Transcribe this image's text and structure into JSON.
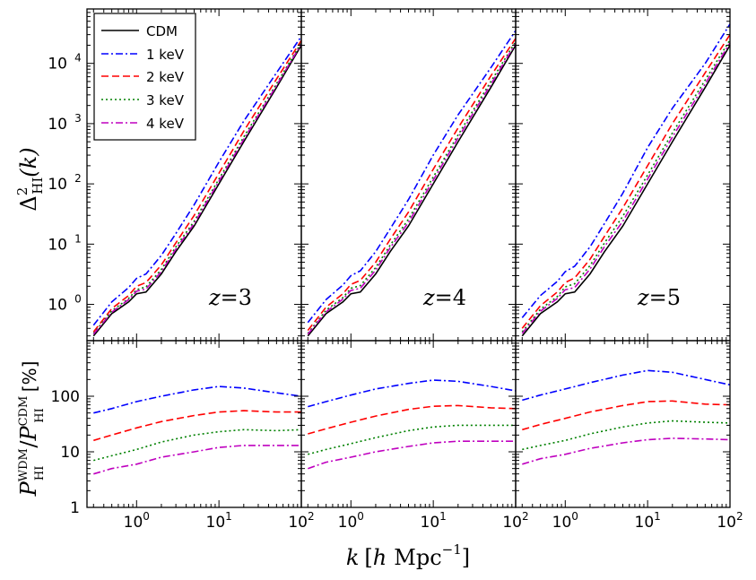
{
  "chart_data": {
    "type": "line",
    "x_axis": {
      "label": "k [h Mpc^-1]",
      "label_parts": {
        "k": "k",
        "h": "h",
        "unit": "Mpc",
        "exp": "−1"
      },
      "scale": "log",
      "xlim": [
        0.25,
        100
      ],
      "ticks": [
        1,
        10,
        100
      ],
      "tick_labels": [
        {
          "base": "10",
          "exp": "0"
        },
        {
          "base": "10",
          "exp": "1"
        },
        {
          "base": "10",
          "exp": "2"
        }
      ]
    },
    "top_y_axis": {
      "label": "Δ²_HI(k)",
      "label_parts": {
        "sym": "Δ",
        "sup": "2",
        "sub": "HI",
        "arg": "(k)"
      },
      "scale": "log",
      "ylim": [
        0.25,
        80000
      ],
      "ticks": [
        1,
        10,
        100,
        1000,
        10000
      ],
      "tick_labels": [
        {
          "base": "10",
          "exp": "0"
        },
        {
          "base": "10",
          "exp": "1"
        },
        {
          "base": "10",
          "exp": "2"
        },
        {
          "base": "10",
          "exp": "3"
        },
        {
          "base": "10",
          "exp": "4"
        }
      ]
    },
    "bottom_y_axis": {
      "label": "P_HI^WDM / P_HI^CDM [%]",
      "label_parts": {
        "P": "P",
        "sub": "HI",
        "sup_wdm": "WDM",
        "sup_cdm": "CDM",
        "slash": "/",
        "unit": "[%]"
      },
      "scale": "log",
      "ylim": [
        1,
        1000
      ],
      "ticks": [
        1,
        10,
        100
      ],
      "tick_labels": [
        "1",
        "10",
        "100"
      ]
    },
    "legend": {
      "position": "top-left of first panel",
      "entries": [
        {
          "label": "CDM",
          "color": "#000000",
          "style": "solid"
        },
        {
          "label": "1 keV",
          "color": "#0000ff",
          "style": "dashdot"
        },
        {
          "label": "2 keV",
          "color": "#ff0000",
          "style": "dashed"
        },
        {
          "label": "3 keV",
          "color": "#008000",
          "style": "dotted"
        },
        {
          "label": "4 keV",
          "color": "#bf00bf",
          "style": "dashdot"
        }
      ]
    },
    "panels": [
      {
        "z_label": "z = 3",
        "z_parts": {
          "z": "z",
          "eq": "=",
          "num": "3"
        },
        "top_series": [
          {
            "name": "CDM",
            "x": [
              0.3,
              0.5,
              0.8,
              1.0,
              1.3,
              2,
              3,
              5,
              10,
              20,
              50,
              100
            ],
            "y": [
              0.3,
              0.7,
              1.1,
              1.5,
              1.6,
              3.2,
              7.5,
              20,
              100,
              500,
              4000,
              20000
            ]
          },
          {
            "name": "1 keV",
            "x": [
              0.3,
              0.5,
              0.8,
              1.0,
              1.3,
              2,
              3,
              5,
              10,
              20,
              50,
              100
            ],
            "y": [
              0.45,
              1.1,
              1.9,
              2.7,
              3.2,
              6.5,
              15,
              45,
              230,
              1100,
              7000,
              28000
            ]
          },
          {
            "name": "2 keV",
            "x": [
              0.3,
              0.5,
              0.8,
              1.0,
              1.3,
              2,
              3,
              5,
              10,
              20,
              50,
              100
            ],
            "y": [
              0.35,
              0.85,
              1.4,
              2.0,
              2.3,
              4.5,
              10.5,
              30,
              150,
              750,
              5500,
              24000
            ]
          },
          {
            "name": "3 keV",
            "x": [
              0.3,
              0.5,
              0.8,
              1.0,
              1.3,
              2,
              3,
              5,
              10,
              20,
              50,
              100
            ],
            "y": [
              0.33,
              0.78,
              1.25,
              1.75,
              1.95,
              3.8,
              9,
              24,
              120,
              600,
              4600,
              22000
            ]
          },
          {
            "name": "4 keV",
            "x": [
              0.3,
              0.5,
              0.8,
              1.0,
              1.3,
              2,
              3,
              5,
              10,
              20,
              50,
              100
            ],
            "y": [
              0.32,
              0.74,
              1.2,
              1.65,
              1.8,
              3.5,
              8.3,
              22,
              110,
              550,
              4300,
              21000
            ]
          }
        ],
        "bottom_series": [
          {
            "name": "1 keV",
            "x": [
              0.3,
              0.5,
              1,
              2,
              5,
              10,
              20,
              50,
              100
            ],
            "y": [
              50,
              60,
              80,
              100,
              130,
              150,
              140,
              115,
              100
            ]
          },
          {
            "name": "2 keV",
            "x": [
              0.3,
              0.5,
              1,
              2,
              5,
              10,
              20,
              50,
              100
            ],
            "y": [
              16,
              20,
              27,
              35,
              45,
              52,
              55,
              52,
              52
            ]
          },
          {
            "name": "3 keV",
            "x": [
              0.3,
              0.5,
              1,
              2,
              5,
              10,
              20,
              50,
              100
            ],
            "y": [
              7,
              8.5,
              11,
              15,
              20,
              23,
              25,
              24,
              25
            ]
          },
          {
            "name": "4 keV",
            "x": [
              0.3,
              0.5,
              1,
              2,
              5,
              10,
              20,
              50,
              100
            ],
            "y": [
              4,
              5,
              6,
              8,
              10,
              12,
              13,
              13,
              13
            ]
          }
        ]
      },
      {
        "z_label": "z = 4",
        "z_parts": {
          "z": "z",
          "eq": "=",
          "num": "4"
        },
        "top_series": [
          {
            "name": "CDM",
            "x": [
              0.3,
              0.5,
              0.8,
              1.0,
              1.3,
              2,
              3,
              5,
              10,
              20,
              50,
              100
            ],
            "y": [
              0.3,
              0.7,
              1.1,
              1.5,
              1.6,
              3.2,
              7.5,
              20,
              100,
              500,
              4000,
              20000
            ]
          },
          {
            "name": "1 keV",
            "x": [
              0.3,
              0.5,
              0.8,
              1.0,
              1.3,
              2,
              3,
              5,
              10,
              20,
              50,
              100
            ],
            "y": [
              0.5,
              1.2,
              2.1,
              3.0,
              3.6,
              7.5,
              18,
              55,
              300,
              1400,
              8500,
              35000
            ]
          },
          {
            "name": "2 keV",
            "x": [
              0.3,
              0.5,
              0.8,
              1.0,
              1.3,
              2,
              3,
              5,
              10,
              20,
              50,
              100
            ],
            "y": [
              0.37,
              0.9,
              1.5,
              2.15,
              2.5,
              5,
              12,
              34,
              175,
              850,
              6200,
              26000
            ]
          },
          {
            "name": "3 keV",
            "x": [
              0.3,
              0.5,
              0.8,
              1.0,
              1.3,
              2,
              3,
              5,
              10,
              20,
              50,
              100
            ],
            "y": [
              0.33,
              0.8,
              1.3,
              1.85,
              2.05,
              4.1,
              9.6,
              26,
              130,
              650,
              5000,
              23000
            ]
          },
          {
            "name": "4 keV",
            "x": [
              0.3,
              0.5,
              0.8,
              1.0,
              1.3,
              2,
              3,
              5,
              10,
              20,
              50,
              100
            ],
            "y": [
              0.32,
              0.75,
              1.22,
              1.7,
              1.85,
              3.7,
              8.7,
              23,
              115,
              580,
              4500,
              21500
            ]
          }
        ],
        "bottom_series": [
          {
            "name": "1 keV",
            "x": [
              0.3,
              0.5,
              1,
              2,
              5,
              10,
              20,
              50,
              100
            ],
            "y": [
              65,
              80,
              105,
              135,
              170,
              195,
              185,
              150,
              125
            ]
          },
          {
            "name": "2 keV",
            "x": [
              0.3,
              0.5,
              1,
              2,
              5,
              10,
              20,
              50,
              100
            ],
            "y": [
              21,
              26,
              34,
              44,
              58,
              66,
              68,
              62,
              60
            ]
          },
          {
            "name": "3 keV",
            "x": [
              0.3,
              0.5,
              1,
              2,
              5,
              10,
              20,
              50,
              100
            ],
            "y": [
              9,
              11,
              14,
              18,
              24,
              28,
              30,
              30,
              30
            ]
          },
          {
            "name": "4 keV",
            "x": [
              0.3,
              0.5,
              1,
              2,
              5,
              10,
              20,
              50,
              100
            ],
            "y": [
              5,
              6.5,
              8,
              10,
              12.5,
              14.5,
              15.5,
              15.5,
              15.5
            ]
          }
        ]
      },
      {
        "z_label": "z = 5",
        "z_parts": {
          "z": "z",
          "eq": "=",
          "num": "5"
        },
        "top_series": [
          {
            "name": "CDM",
            "x": [
              0.3,
              0.5,
              0.8,
              1.0,
              1.3,
              2,
              3,
              5,
              10,
              20,
              50,
              100
            ],
            "y": [
              0.3,
              0.7,
              1.1,
              1.5,
              1.6,
              3.2,
              7.5,
              20,
              100,
              500,
              4000,
              20000
            ]
          },
          {
            "name": "1 keV",
            "x": [
              0.3,
              0.5,
              0.8,
              1.0,
              1.3,
              2,
              3,
              5,
              10,
              20,
              50,
              100
            ],
            "y": [
              0.6,
              1.4,
              2.4,
              3.5,
              4.3,
              9,
              22,
              70,
              400,
              1800,
              10000,
              45000
            ]
          },
          {
            "name": "2 keV",
            "x": [
              0.3,
              0.5,
              0.8,
              1.0,
              1.3,
              2,
              3,
              5,
              10,
              20,
              50,
              100
            ],
            "y": [
              0.4,
              0.95,
              1.6,
              2.3,
              2.75,
              5.6,
              13.5,
              40,
              200,
              1000,
              7000,
              30000
            ]
          },
          {
            "name": "3 keV",
            "x": [
              0.3,
              0.5,
              0.8,
              1.0,
              1.3,
              2,
              3,
              5,
              10,
              20,
              50,
              100
            ],
            "y": [
              0.35,
              0.83,
              1.35,
              1.95,
              2.2,
              4.4,
              10.5,
              29,
              140,
              700,
              5300,
              24500
            ]
          },
          {
            "name": "4 keV",
            "x": [
              0.3,
              0.5,
              0.8,
              1.0,
              1.3,
              2,
              3,
              5,
              10,
              20,
              50,
              100
            ],
            "y": [
              0.33,
              0.77,
              1.25,
              1.75,
              1.9,
              3.85,
              9.1,
              24,
              120,
              600,
              4600,
              22000
            ]
          }
        ],
        "bottom_series": [
          {
            "name": "1 keV",
            "x": [
              0.3,
              0.5,
              1,
              2,
              5,
              10,
              20,
              50,
              100
            ],
            "y": [
              85,
              105,
              135,
              175,
              240,
              290,
              270,
              200,
              160
            ]
          },
          {
            "name": "2 keV",
            "x": [
              0.3,
              0.5,
              1,
              2,
              5,
              10,
              20,
              50,
              100
            ],
            "y": [
              25,
              31,
              40,
              52,
              68,
              80,
              82,
              72,
              70
            ]
          },
          {
            "name": "3 keV",
            "x": [
              0.3,
              0.5,
              1,
              2,
              5,
              10,
              20,
              50,
              100
            ],
            "y": [
              11,
              13,
              16,
              21,
              28,
              33,
              36,
              34,
              33
            ]
          },
          {
            "name": "4 keV",
            "x": [
              0.3,
              0.5,
              1,
              2,
              5,
              10,
              20,
              50,
              100
            ],
            "y": [
              6,
              7.5,
              9,
              11.5,
              14.5,
              16.5,
              17.5,
              17,
              16.5
            ]
          }
        ]
      }
    ]
  }
}
